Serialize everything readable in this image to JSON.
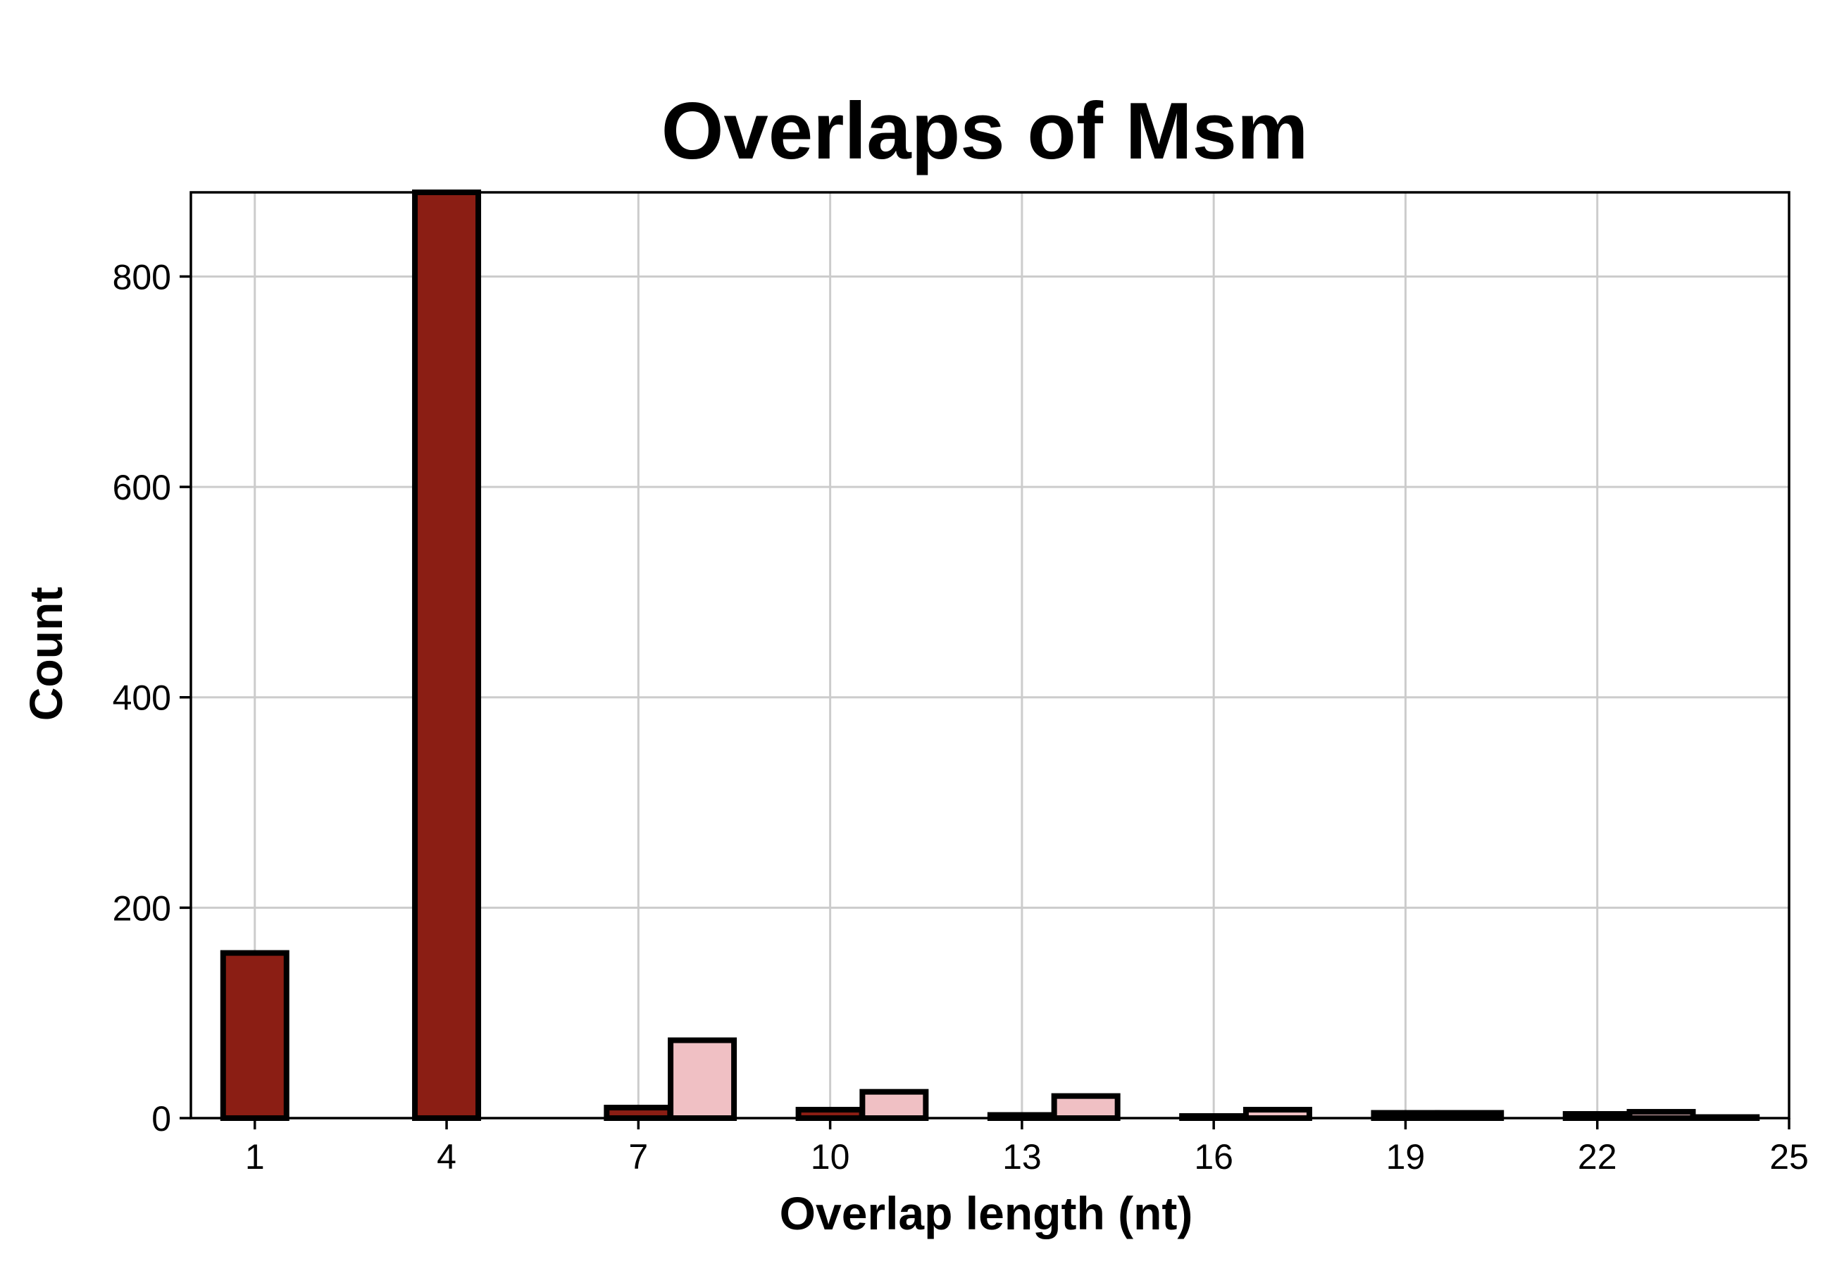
{
  "chart_data": {
    "type": "bar",
    "title": "Overlaps of Msm",
    "xlabel": "Overlap length (nt)",
    "ylabel": "Count",
    "xlim": [
      0,
      25
    ],
    "ylim": [
      0,
      880
    ],
    "x_ticks": [
      1,
      4,
      7,
      10,
      13,
      16,
      19,
      22,
      25
    ],
    "y_ticks": [
      0,
      200,
      400,
      600,
      800
    ],
    "grid": true,
    "colors": {
      "dark": "#8b1e14",
      "light": "#f0c0c4"
    },
    "bars": [
      {
        "x": 1,
        "value": 157,
        "color": "dark"
      },
      {
        "x": 4,
        "value": 880,
        "color": "dark"
      },
      {
        "x": 7,
        "value": 10,
        "color": "dark"
      },
      {
        "x": 8,
        "value": 74,
        "color": "light"
      },
      {
        "x": 10,
        "value": 8,
        "color": "dark"
      },
      {
        "x": 11,
        "value": 25,
        "color": "light"
      },
      {
        "x": 13,
        "value": 3,
        "color": "dark"
      },
      {
        "x": 14,
        "value": 21,
        "color": "light"
      },
      {
        "x": 16,
        "value": 2,
        "color": "dark"
      },
      {
        "x": 17,
        "value": 8,
        "color": "light"
      },
      {
        "x": 19,
        "value": 5,
        "color": "dark"
      },
      {
        "x": 20,
        "value": 5,
        "color": "light"
      },
      {
        "x": 22,
        "value": 4,
        "color": "dark"
      },
      {
        "x": 23,
        "value": 6,
        "color": "light"
      },
      {
        "x": 24,
        "value": 1,
        "color": "light"
      }
    ]
  }
}
